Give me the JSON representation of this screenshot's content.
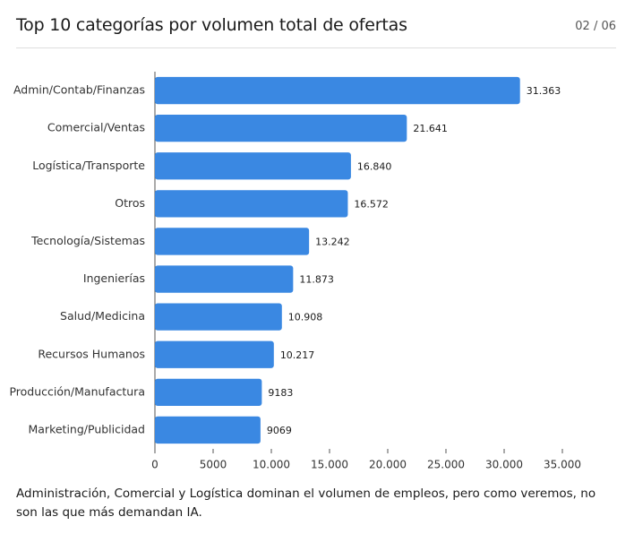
{
  "page": "02 / 06",
  "caption": "Administración, Comercial y Logística dominan el volumen de empleos, pero como veremos, no son las que más demandan IA.",
  "chart_data": {
    "type": "bar",
    "orientation": "horizontal",
    "title": "Top 10 categorías por volumen total de ofertas",
    "categories": [
      "Admin/Contab/Finanzas",
      "Comercial/Ventas",
      "Logística/Transporte",
      "Otros",
      "Tecnología/Sistemas",
      "Ingenierías",
      "Salud/Medicina",
      "Recursos Humanos",
      "Producción/Manufactura",
      "Marketing/Publicidad"
    ],
    "values": [
      31363,
      21641,
      16840,
      16572,
      13242,
      11873,
      10908,
      10217,
      9183,
      9069
    ],
    "value_labels": [
      "31.363",
      "21.641",
      "16.840",
      "16.572",
      "13.242",
      "11.873",
      "10.908",
      "10.217",
      "9183",
      "9069"
    ],
    "color": "#3a88e2",
    "xlim": [
      0,
      35000
    ],
    "xticks": [
      0,
      5000,
      {
        "value": 10000,
        "label": "10.000"
      },
      {
        "value": 15000,
        "label": "15.000"
      },
      {
        "value": 20000,
        "label": "20.000"
      },
      {
        "value": 25000,
        "label": "25.000"
      },
      {
        "value": 30000,
        "label": "30.000"
      },
      {
        "value": 35000,
        "label": "35.000"
      }
    ],
    "grid": false
  }
}
